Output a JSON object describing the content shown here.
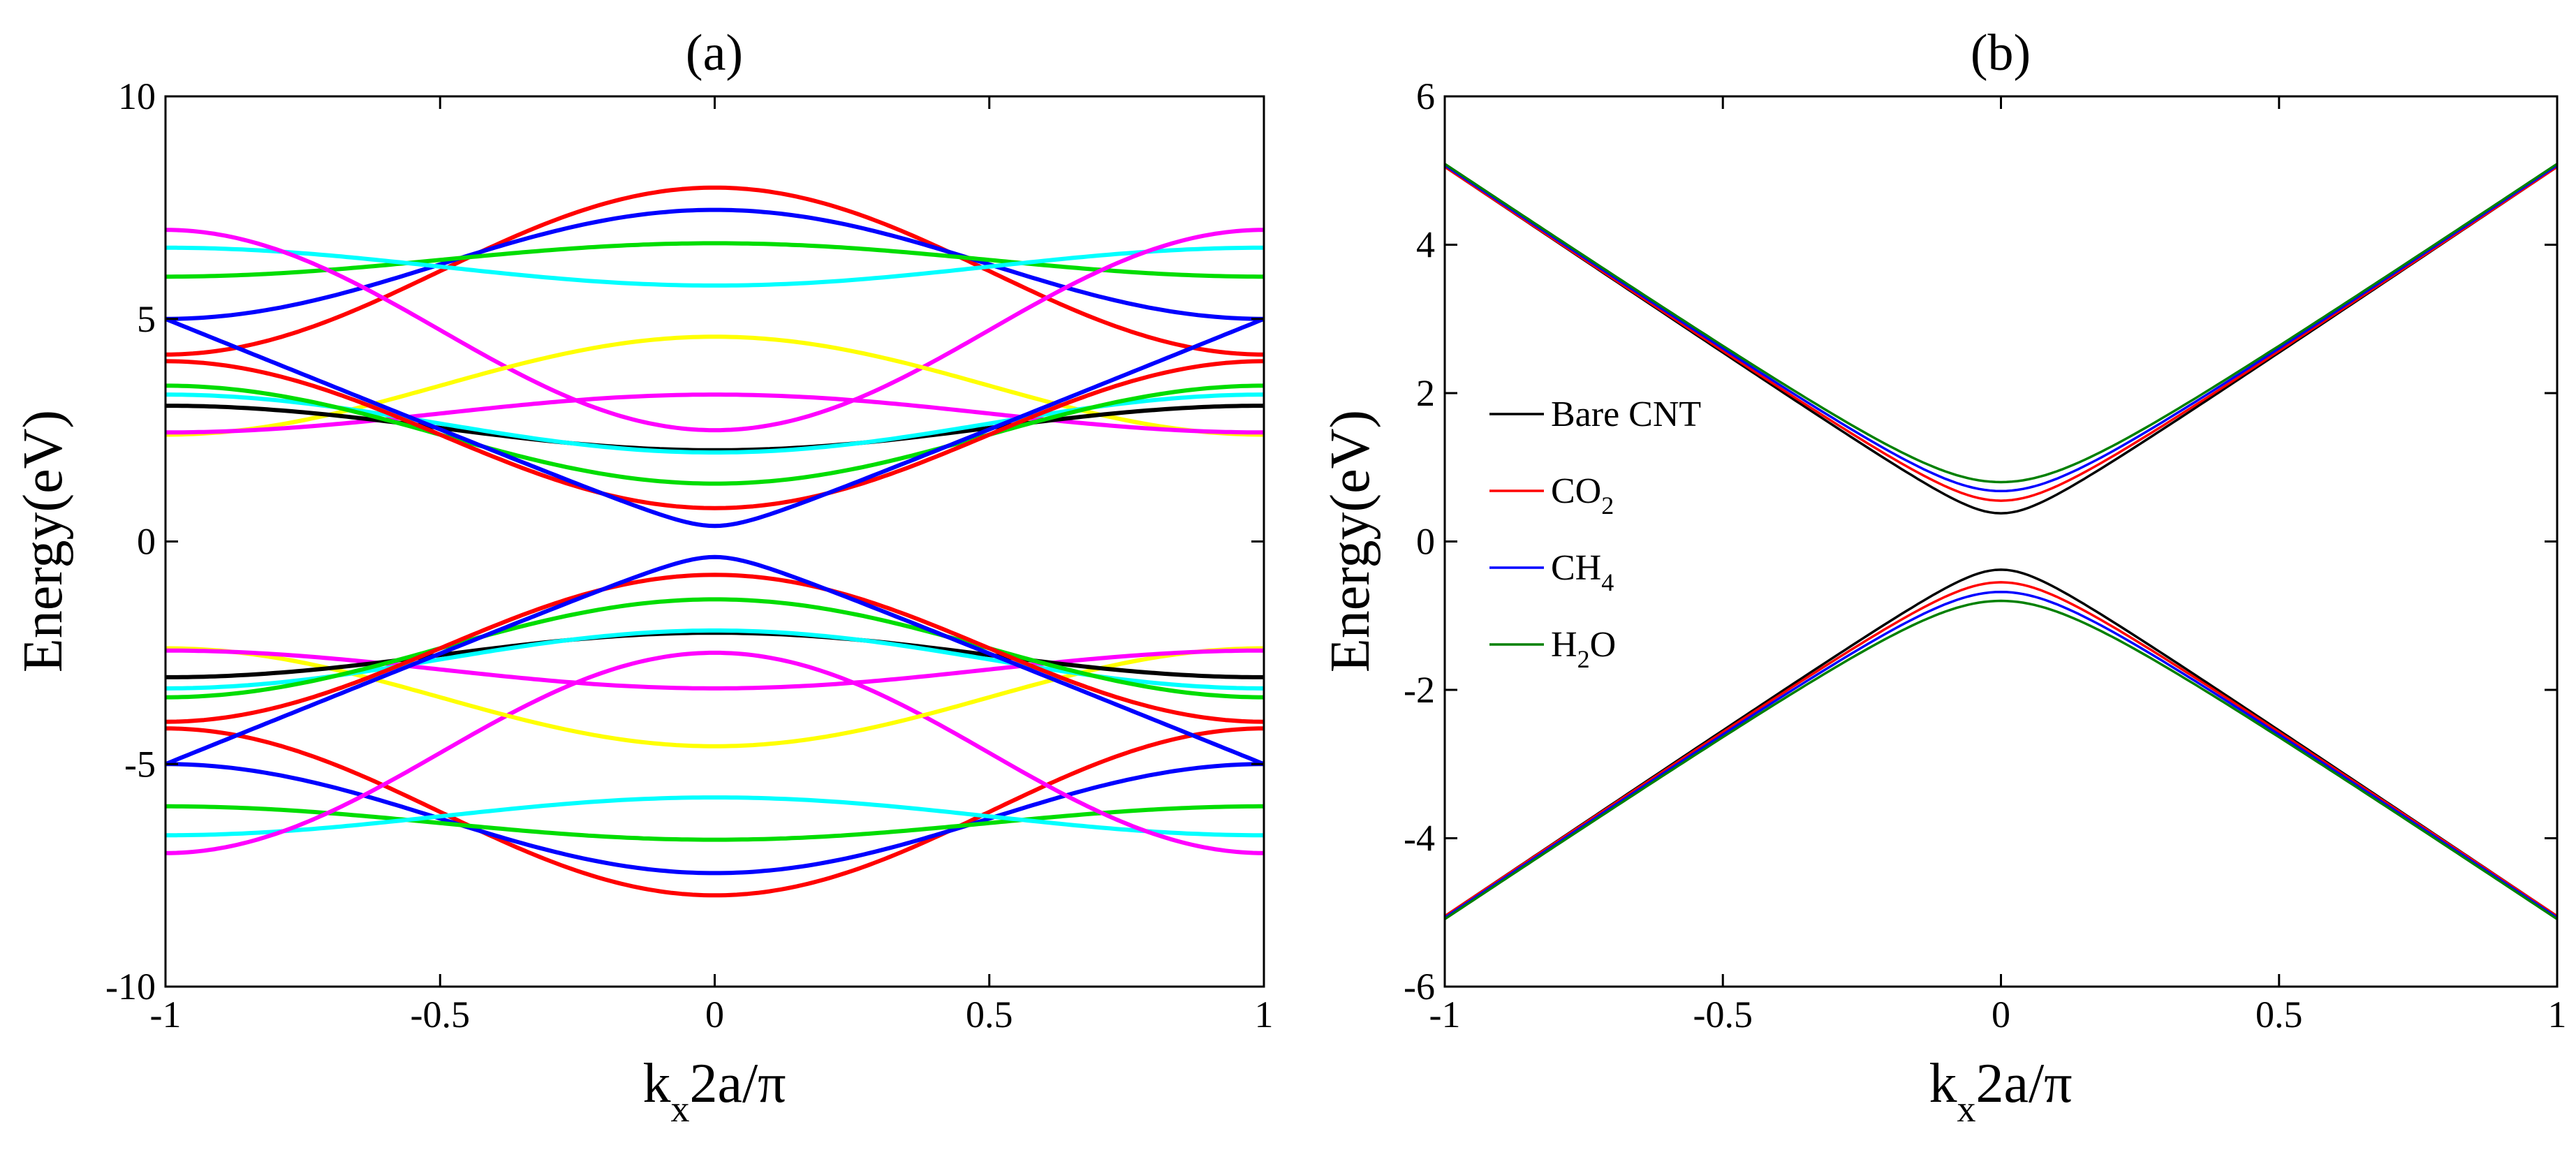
{
  "chart_data": [
    {
      "panel": "(a)",
      "type": "line",
      "title": "(a)",
      "xlabel": {
        "main": "k",
        "sub": "x",
        "rest": "2a/π"
      },
      "ylabel": "Energy(eV)",
      "xlim": [
        -1,
        1
      ],
      "ylim": [
        -10,
        10
      ],
      "xticks": [
        -1,
        -0.5,
        0,
        0.5,
        1
      ],
      "xtick_labels": [
        "-1",
        "-0.5",
        "0",
        "0.5",
        "1"
      ],
      "yticks": [
        -10,
        -5,
        0,
        5,
        10
      ],
      "ytick_labels": [
        "-10",
        "-5",
        "0",
        "5",
        "10"
      ],
      "legend": null,
      "series": [
        {
          "name": "band-red-outer",
          "color": "#ff0000",
          "type": "cos",
          "e0": 7.95,
          "e1": 4.2,
          "symmetric": true
        },
        {
          "name": "band-blue-outer",
          "color": "#0000ff",
          "type": "cos",
          "e0": 7.45,
          "e1": 5.0,
          "symmetric": true
        },
        {
          "name": "band-green-outer",
          "color": "#00dd00",
          "type": "cos",
          "e0": 6.7,
          "e1": 5.95,
          "symmetric": true
        },
        {
          "name": "band-cyan-outer",
          "color": "#00ffff",
          "type": "cos",
          "e0": 5.75,
          "e1": 6.6,
          "symmetric": true
        },
        {
          "name": "band-magenta-outer",
          "color": "#ff00ff",
          "type": "cos",
          "e0": 2.5,
          "e1": 7.0,
          "symmetric": true
        },
        {
          "name": "band-yellow",
          "color": "#ffff00",
          "type": "cos",
          "e0": 4.6,
          "e1": 2.4,
          "symmetric": true
        },
        {
          "name": "band-magenta-flat",
          "color": "#ff00ff",
          "type": "cos",
          "e0": 3.3,
          "e1": 2.45,
          "symmetric": true
        },
        {
          "name": "band-black",
          "color": "#000000",
          "type": "cos",
          "e0": 2.05,
          "e1": 3.05,
          "symmetric": true
        },
        {
          "name": "band-cyan-inner",
          "color": "#00ffff",
          "type": "cos",
          "e0": 2.0,
          "e1": 3.3,
          "symmetric": true
        },
        {
          "name": "band-green-inner",
          "color": "#00dd00",
          "type": "cos",
          "e0": 1.3,
          "e1": 3.5,
          "symmetric": true
        },
        {
          "name": "band-red-inner",
          "color": "#ff0000",
          "type": "cos",
          "e0": 0.75,
          "e1": 4.05,
          "symmetric": true
        },
        {
          "name": "band-blue-inner",
          "color": "#0000ff",
          "type": "hyp",
          "e0": 0.35,
          "e1": 5.0,
          "symmetric": true
        }
      ]
    },
    {
      "panel": "(b)",
      "type": "line",
      "title": "(b)",
      "xlabel": {
        "main": "k",
        "sub": "x",
        "rest": "2a/π"
      },
      "ylabel": "Energy(eV)",
      "xlim": [
        -1,
        1
      ],
      "ylim": [
        -6,
        6
      ],
      "xticks": [
        -1,
        -0.5,
        0,
        0.5,
        1
      ],
      "xtick_labels": [
        "-1",
        "-0.5",
        "0",
        "0.5",
        "1"
      ],
      "yticks": [
        -6,
        -4,
        -2,
        0,
        2,
        4,
        6
      ],
      "ytick_labels": [
        "-6",
        "-4",
        "-2",
        "0",
        "2",
        "4",
        "6"
      ],
      "legend": [
        {
          "main": "Bare CNT",
          "sub": "",
          "tail": "",
          "color": "#000000"
        },
        {
          "main": "CO",
          "sub": "2",
          "tail": "",
          "color": "#ff0000"
        },
        {
          "main": "CH",
          "sub": "4",
          "tail": "",
          "color": "#0000ff"
        },
        {
          "main": "H",
          "sub": "2",
          "tail": "O",
          "color": "#008000"
        }
      ],
      "series": [
        {
          "name": "Bare CNT",
          "color": "#000000",
          "type": "hyp",
          "e0": 0.38,
          "e1": 5.05,
          "symmetric": true
        },
        {
          "name": "CO2",
          "color": "#ff0000",
          "type": "hyp",
          "e0": 0.55,
          "e1": 5.05,
          "symmetric": true
        },
        {
          "name": "CH4",
          "color": "#0000ff",
          "type": "hyp",
          "e0": 0.68,
          "e1": 5.07,
          "symmetric": true
        },
        {
          "name": "H2O",
          "color": "#008000",
          "type": "hyp",
          "e0": 0.8,
          "e1": 5.09,
          "symmetric": true
        }
      ]
    }
  ]
}
